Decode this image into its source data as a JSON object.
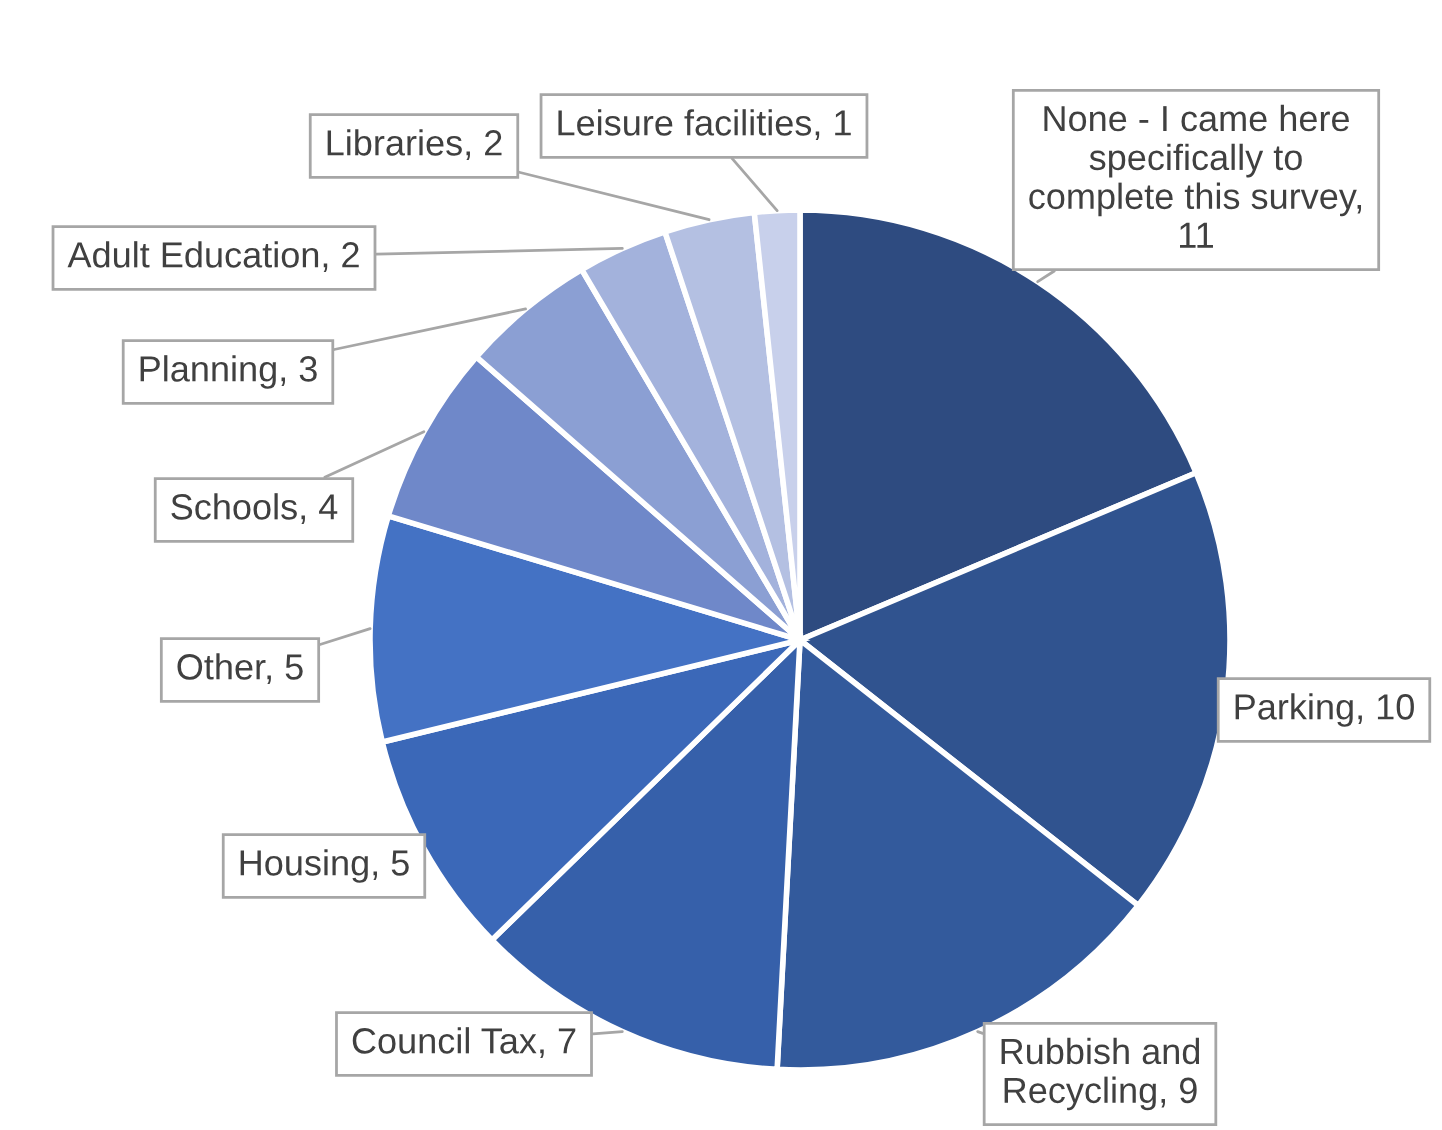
{
  "chart_data": {
    "type": "pie",
    "categories": [
      "None - I came here specifically to complete this survey, 11",
      "Parking, 10",
      "Rubbish and Recycling, 9",
      "Council Tax, 7",
      "Housing, 5",
      "Other, 5",
      "Schools, 4",
      "Planning, 3",
      "Adult Education, 2",
      "Libraries, 2",
      "Leisure facilities, 1"
    ],
    "values": [
      11,
      10,
      9,
      7,
      5,
      5,
      4,
      3,
      2,
      2,
      1
    ],
    "colors": [
      "#2e4b80",
      "#30538f",
      "#335a9c",
      "#3660aa",
      "#3b68b8",
      "#4472c4",
      "#6f88c9",
      "#8b9fd3",
      "#a3b2dc",
      "#b4c0e2",
      "#c8d0eb"
    ]
  }
}
